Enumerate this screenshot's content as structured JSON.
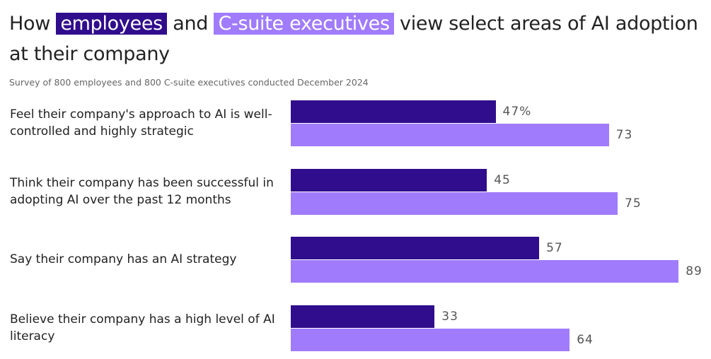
{
  "chart_data": {
    "type": "bar",
    "title_before": "How",
    "title_between": "and",
    "title_after": "view select areas of AI adoption at their company",
    "subtitle": "Survey of 800 employees and 800 C-suite executives conducted December 2024",
    "categories": [
      "Feel their company's approach to AI is well-controlled and highly strategic",
      "Think their company has been successful in adopting AI over the past 12 months",
      "Say their company has an AI strategy",
      "Believe their company has a high level of AI literacy"
    ],
    "series": [
      {
        "name": "employees",
        "color": "#300d8c",
        "values": [
          47,
          45,
          57,
          33
        ],
        "value_labels": [
          "47%",
          "45",
          "57",
          "33"
        ]
      },
      {
        "name": "C-suite executives",
        "color": "#a07cfc",
        "values": [
          73,
          75,
          89,
          64
        ]
      }
    ]
  }
}
